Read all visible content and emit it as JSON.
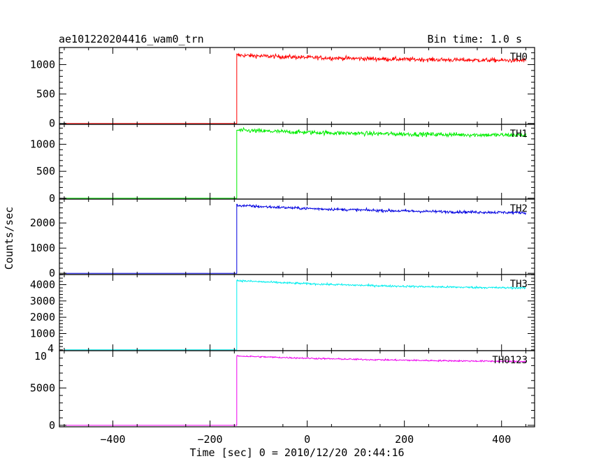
{
  "title_left": "ae101220204416_wam0_trn",
  "title_right": "Bin time: 1.0 s",
  "xlabel": "Time [sec] 0 = 2010/12/20 20:44:16",
  "ylabel": "Counts/sec",
  "chart_data": {
    "type": "line",
    "x": {
      "range": [
        -510,
        468
      ],
      "ticks": [
        -400,
        -200,
        0,
        200,
        400
      ],
      "tick_labels": [
        "−400",
        "−200",
        "0",
        "200",
        "400"
      ],
      "data_start": -500,
      "data_end": 450,
      "step_time": -145
    },
    "panels": [
      {
        "name": "TH0",
        "color": "#ff0000",
        "ylim": [
          -15,
          1290
        ],
        "yticks": [
          0,
          500,
          1000
        ],
        "ytick_labels": [
          "0",
          "500",
          "1000"
        ],
        "baseline": 0,
        "level_start": 1160,
        "level_end": 1050,
        "noise": 70
      },
      {
        "name": "TH1",
        "color": "#00ee00",
        "ylim": [
          -15,
          1370
        ],
        "yticks": [
          0,
          500,
          1000
        ],
        "ytick_labels": [
          "0",
          "500",
          "1000"
        ],
        "baseline": 0,
        "level_start": 1260,
        "level_end": 1150,
        "noise": 80
      },
      {
        "name": "TH2",
        "color": "#0000e0",
        "ylim": [
          -50,
          2950
        ],
        "yticks": [
          0,
          1000,
          2000
        ],
        "ytick_labels": [
          "0",
          "1000",
          "2000"
        ],
        "baseline": 0,
        "level_start": 2700,
        "level_end": 2350,
        "noise": 110
      },
      {
        "name": "TH3",
        "color": "#00eeee",
        "ylim": [
          -50,
          4620
        ],
        "yticks": [
          1000,
          2000,
          3000,
          4000
        ],
        "ytick_labels": [
          "1000",
          "2000",
          "3000",
          "4000"
        ],
        "extra_label": "4",
        "baseline": 0,
        "level_start": 4250,
        "level_end": 3700,
        "noise": 120
      },
      {
        "name": "TH0123",
        "color": "#ee00ee",
        "ylim": [
          -200,
          10000
        ],
        "yticks": [
          0,
          5000
        ],
        "ytick_labels": [
          "0",
          "5000"
        ],
        "top_label": "10",
        "baseline": 0,
        "level_start": 9300,
        "level_end": 8400,
        "noise": 200
      }
    ]
  }
}
